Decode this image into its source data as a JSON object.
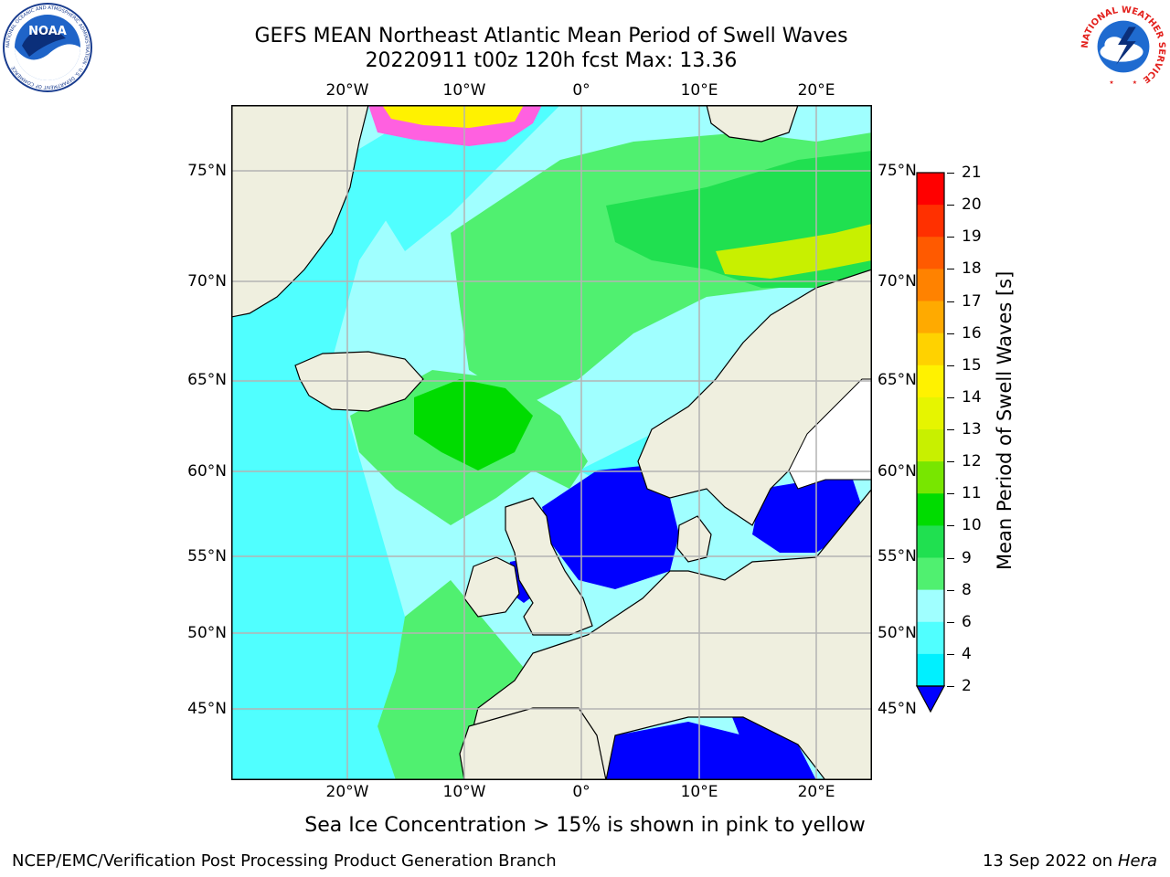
{
  "title": {
    "line1": "GEFS MEAN Northeast Atlantic Mean Period of Swell Waves",
    "line2": "20220911 t00z 120h fcst   Max: 13.36"
  },
  "logos": {
    "noaa": {
      "text": "NOAA",
      "ring": "NATIONAL OCEANIC AND ATMOSPHERIC ADMINISTRATION · U.S. DEPARTMENT OF COMMERCE"
    },
    "nws": {
      "ring": "NATIONAL WEATHER SERVICE"
    }
  },
  "map": {
    "lon_ticks": [
      "20°W",
      "10°W",
      "0°",
      "10°E",
      "20°E"
    ],
    "lat_ticks": [
      "75°N",
      "70°N",
      "65°N",
      "60°N",
      "55°N",
      "50°N",
      "45°N"
    ],
    "colors": {
      "land": "#efefdf",
      "coast": "#000000",
      "grid": "#b4b4b4"
    }
  },
  "colorbar": {
    "title": "Mean Period of Swell Waves [s]",
    "labels": [
      "21",
      "20",
      "19",
      "18",
      "17",
      "16",
      "15",
      "14",
      "13",
      "12",
      "11",
      "10",
      "9",
      "8",
      "6",
      "4",
      "2"
    ],
    "colors": [
      "#ff0000",
      "#ff3000",
      "#ff5a00",
      "#ff8200",
      "#ffaa00",
      "#ffd200",
      "#fff200",
      "#e6f500",
      "#c8f000",
      "#78e600",
      "#00dc00",
      "#20e050",
      "#50f070",
      "#a0ffff",
      "#50ffff",
      "#00f0ff",
      "#00aaff"
    ],
    "under_color": "#0000ff"
  },
  "caption": "Sea Ice Concentration > 15% is shown in pink to yellow",
  "footer": {
    "left": "NCEP/EMC/Verification Post Processing Product Generation Branch",
    "date": "13 Sep 2022 on",
    "machine": "Hera"
  }
}
